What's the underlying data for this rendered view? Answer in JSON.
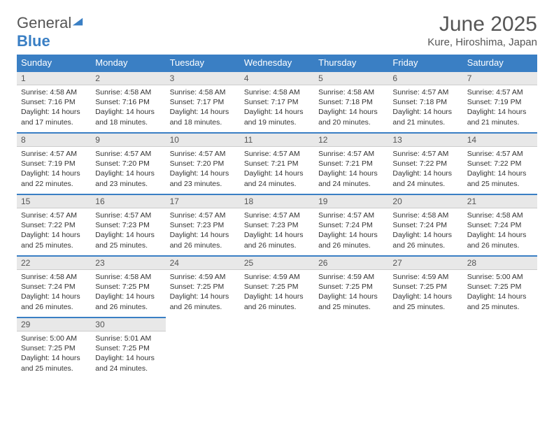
{
  "brand": {
    "part1": "General",
    "part2": "Blue"
  },
  "title": "June 2025",
  "location": "Kure, Hiroshima, Japan",
  "colors": {
    "header_bg": "#3a7fc4",
    "header_text": "#ffffff",
    "daynum_bg": "#e8e8e8",
    "daynum_border_top": "#3a7fc4",
    "text": "#333333",
    "page_bg": "#ffffff"
  },
  "weekdays": [
    "Sunday",
    "Monday",
    "Tuesday",
    "Wednesday",
    "Thursday",
    "Friday",
    "Saturday"
  ],
  "weeks": [
    [
      {
        "n": "1",
        "sr": "4:58 AM",
        "ss": "7:16 PM",
        "dl": "14 hours and 17 minutes."
      },
      {
        "n": "2",
        "sr": "4:58 AM",
        "ss": "7:16 PM",
        "dl": "14 hours and 18 minutes."
      },
      {
        "n": "3",
        "sr": "4:58 AM",
        "ss": "7:17 PM",
        "dl": "14 hours and 18 minutes."
      },
      {
        "n": "4",
        "sr": "4:58 AM",
        "ss": "7:17 PM",
        "dl": "14 hours and 19 minutes."
      },
      {
        "n": "5",
        "sr": "4:58 AM",
        "ss": "7:18 PM",
        "dl": "14 hours and 20 minutes."
      },
      {
        "n": "6",
        "sr": "4:57 AM",
        "ss": "7:18 PM",
        "dl": "14 hours and 21 minutes."
      },
      {
        "n": "7",
        "sr": "4:57 AM",
        "ss": "7:19 PM",
        "dl": "14 hours and 21 minutes."
      }
    ],
    [
      {
        "n": "8",
        "sr": "4:57 AM",
        "ss": "7:19 PM",
        "dl": "14 hours and 22 minutes."
      },
      {
        "n": "9",
        "sr": "4:57 AM",
        "ss": "7:20 PM",
        "dl": "14 hours and 23 minutes."
      },
      {
        "n": "10",
        "sr": "4:57 AM",
        "ss": "7:20 PM",
        "dl": "14 hours and 23 minutes."
      },
      {
        "n": "11",
        "sr": "4:57 AM",
        "ss": "7:21 PM",
        "dl": "14 hours and 24 minutes."
      },
      {
        "n": "12",
        "sr": "4:57 AM",
        "ss": "7:21 PM",
        "dl": "14 hours and 24 minutes."
      },
      {
        "n": "13",
        "sr": "4:57 AM",
        "ss": "7:22 PM",
        "dl": "14 hours and 24 minutes."
      },
      {
        "n": "14",
        "sr": "4:57 AM",
        "ss": "7:22 PM",
        "dl": "14 hours and 25 minutes."
      }
    ],
    [
      {
        "n": "15",
        "sr": "4:57 AM",
        "ss": "7:22 PM",
        "dl": "14 hours and 25 minutes."
      },
      {
        "n": "16",
        "sr": "4:57 AM",
        "ss": "7:23 PM",
        "dl": "14 hours and 25 minutes."
      },
      {
        "n": "17",
        "sr": "4:57 AM",
        "ss": "7:23 PM",
        "dl": "14 hours and 26 minutes."
      },
      {
        "n": "18",
        "sr": "4:57 AM",
        "ss": "7:23 PM",
        "dl": "14 hours and 26 minutes."
      },
      {
        "n": "19",
        "sr": "4:57 AM",
        "ss": "7:24 PM",
        "dl": "14 hours and 26 minutes."
      },
      {
        "n": "20",
        "sr": "4:58 AM",
        "ss": "7:24 PM",
        "dl": "14 hours and 26 minutes."
      },
      {
        "n": "21",
        "sr": "4:58 AM",
        "ss": "7:24 PM",
        "dl": "14 hours and 26 minutes."
      }
    ],
    [
      {
        "n": "22",
        "sr": "4:58 AM",
        "ss": "7:24 PM",
        "dl": "14 hours and 26 minutes."
      },
      {
        "n": "23",
        "sr": "4:58 AM",
        "ss": "7:25 PM",
        "dl": "14 hours and 26 minutes."
      },
      {
        "n": "24",
        "sr": "4:59 AM",
        "ss": "7:25 PM",
        "dl": "14 hours and 26 minutes."
      },
      {
        "n": "25",
        "sr": "4:59 AM",
        "ss": "7:25 PM",
        "dl": "14 hours and 26 minutes."
      },
      {
        "n": "26",
        "sr": "4:59 AM",
        "ss": "7:25 PM",
        "dl": "14 hours and 25 minutes."
      },
      {
        "n": "27",
        "sr": "4:59 AM",
        "ss": "7:25 PM",
        "dl": "14 hours and 25 minutes."
      },
      {
        "n": "28",
        "sr": "5:00 AM",
        "ss": "7:25 PM",
        "dl": "14 hours and 25 minutes."
      }
    ],
    [
      {
        "n": "29",
        "sr": "5:00 AM",
        "ss": "7:25 PM",
        "dl": "14 hours and 25 minutes."
      },
      {
        "n": "30",
        "sr": "5:01 AM",
        "ss": "7:25 PM",
        "dl": "14 hours and 24 minutes."
      },
      null,
      null,
      null,
      null,
      null
    ]
  ],
  "labels": {
    "sunrise": "Sunrise:",
    "sunset": "Sunset:",
    "daylight": "Daylight:"
  }
}
